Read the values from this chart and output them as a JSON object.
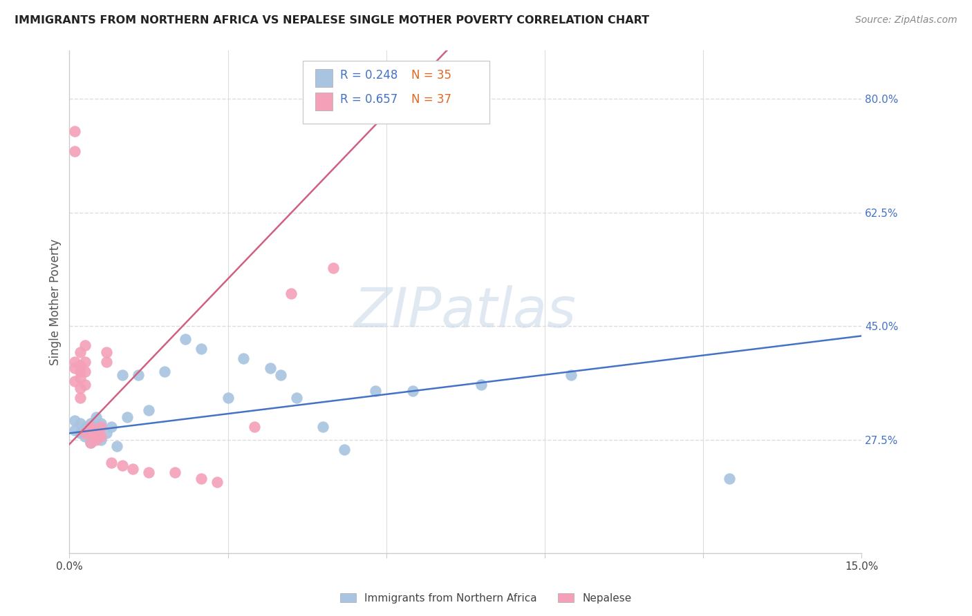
{
  "title": "IMMIGRANTS FROM NORTHERN AFRICA VS NEPALESE SINGLE MOTHER POVERTY CORRELATION CHART",
  "source": "Source: ZipAtlas.com",
  "ylabel": "Single Mother Poverty",
  "xlim": [
    0.0,
    0.15
  ],
  "ylim": [
    0.1,
    0.875
  ],
  "blue_R": 0.248,
  "blue_N": 35,
  "pink_R": 0.657,
  "pink_N": 37,
  "blue_color": "#a8c4e0",
  "pink_color": "#f4a0b8",
  "blue_line_color": "#4472c4",
  "pink_line_color": "#d06080",
  "legend_label_blue": "Immigrants from Northern Africa",
  "legend_label_pink": "Nepalese",
  "blue_x": [
    0.001,
    0.001,
    0.002,
    0.002,
    0.003,
    0.003,
    0.003,
    0.004,
    0.004,
    0.005,
    0.005,
    0.006,
    0.006,
    0.007,
    0.008,
    0.009,
    0.01,
    0.011,
    0.013,
    0.015,
    0.018,
    0.022,
    0.025,
    0.03,
    0.033,
    0.038,
    0.04,
    0.043,
    0.048,
    0.052,
    0.058,
    0.065,
    0.078,
    0.095,
    0.125
  ],
  "blue_y": [
    0.29,
    0.305,
    0.285,
    0.3,
    0.29,
    0.28,
    0.295,
    0.27,
    0.3,
    0.285,
    0.31,
    0.275,
    0.3,
    0.285,
    0.295,
    0.265,
    0.375,
    0.31,
    0.375,
    0.32,
    0.38,
    0.43,
    0.415,
    0.34,
    0.4,
    0.385,
    0.375,
    0.34,
    0.295,
    0.26,
    0.35,
    0.35,
    0.36,
    0.375,
    0.215
  ],
  "pink_x": [
    0.001,
    0.001,
    0.001,
    0.001,
    0.001,
    0.002,
    0.002,
    0.002,
    0.002,
    0.002,
    0.002,
    0.003,
    0.003,
    0.003,
    0.003,
    0.003,
    0.004,
    0.004,
    0.004,
    0.004,
    0.005,
    0.005,
    0.005,
    0.006,
    0.006,
    0.007,
    0.007,
    0.008,
    0.01,
    0.012,
    0.015,
    0.02,
    0.025,
    0.028,
    0.035,
    0.042,
    0.05
  ],
  "pink_y": [
    0.75,
    0.72,
    0.395,
    0.385,
    0.365,
    0.38,
    0.37,
    0.355,
    0.34,
    0.39,
    0.41,
    0.42,
    0.395,
    0.38,
    0.36,
    0.285,
    0.295,
    0.29,
    0.285,
    0.27,
    0.29,
    0.285,
    0.275,
    0.295,
    0.28,
    0.41,
    0.395,
    0.24,
    0.235,
    0.23,
    0.225,
    0.225,
    0.215,
    0.21,
    0.295,
    0.5,
    0.54
  ],
  "ytick_vals": [
    0.275,
    0.45,
    0.625,
    0.8
  ],
  "ytick_labels": [
    "27.5%",
    "45.0%",
    "62.5%",
    "80.0%"
  ],
  "xtick_vals": [
    0.0,
    0.03,
    0.06,
    0.09,
    0.12,
    0.15
  ],
  "xtick_labels": [
    "0.0%",
    "",
    "",
    "",
    "",
    "15.0%"
  ],
  "watermark": "ZIPatlas",
  "background_color": "#ffffff",
  "grid_color": "#dddddd",
  "pink_line_x0": 0.0,
  "pink_line_y0": 0.268,
  "pink_line_x1": 0.065,
  "pink_line_y1": 0.82,
  "blue_line_x0": 0.0,
  "blue_line_y0": 0.285,
  "blue_line_x1": 0.15,
  "blue_line_y1": 0.435
}
